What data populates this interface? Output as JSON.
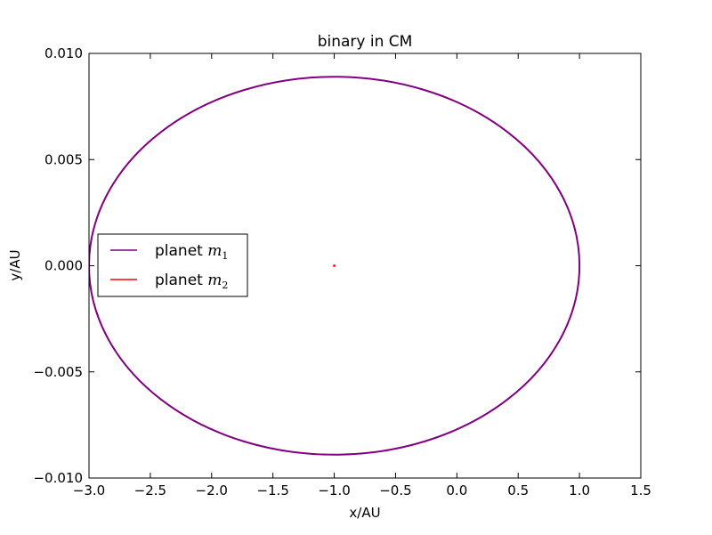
{
  "chart_data": {
    "type": "line",
    "title": "binary in CM",
    "xlabel": "x/AU",
    "ylabel": "y/AU",
    "xlim": [
      -3.0,
      1.5
    ],
    "ylim": [
      -0.01,
      0.01
    ],
    "x_tick_labels": [
      "−3.0",
      "−2.5",
      "−2.0",
      "−1.5",
      "−1.0",
      "−0.5",
      "0.0",
      "0.5",
      "1.0",
      "1.5"
    ],
    "x_tick_values": [
      -3.0,
      -2.5,
      -2.0,
      -1.5,
      -1.0,
      -0.5,
      0.0,
      0.5,
      1.0,
      1.5
    ],
    "y_tick_labels": [
      "−0.010",
      "−0.005",
      "0.000",
      "0.005",
      "0.010"
    ],
    "y_tick_values": [
      -0.01,
      -0.005,
      0.0,
      0.005,
      0.01
    ],
    "grid": false,
    "legend_position": "center-left",
    "series": [
      {
        "name": "planet",
        "name_subscript": "1",
        "color": "#800080",
        "shape": "ellipse",
        "center": [
          -1.0,
          0.0
        ],
        "semi_axis_x": 2.0,
        "semi_axis_y": 0.0089
      },
      {
        "name": "planet",
        "name_subscript": "2",
        "color": "#ff0000",
        "shape": "ellipse",
        "center": [
          -1.0,
          0.0
        ],
        "semi_axis_x": 0.006,
        "semi_axis_y": 3e-05
      }
    ]
  }
}
